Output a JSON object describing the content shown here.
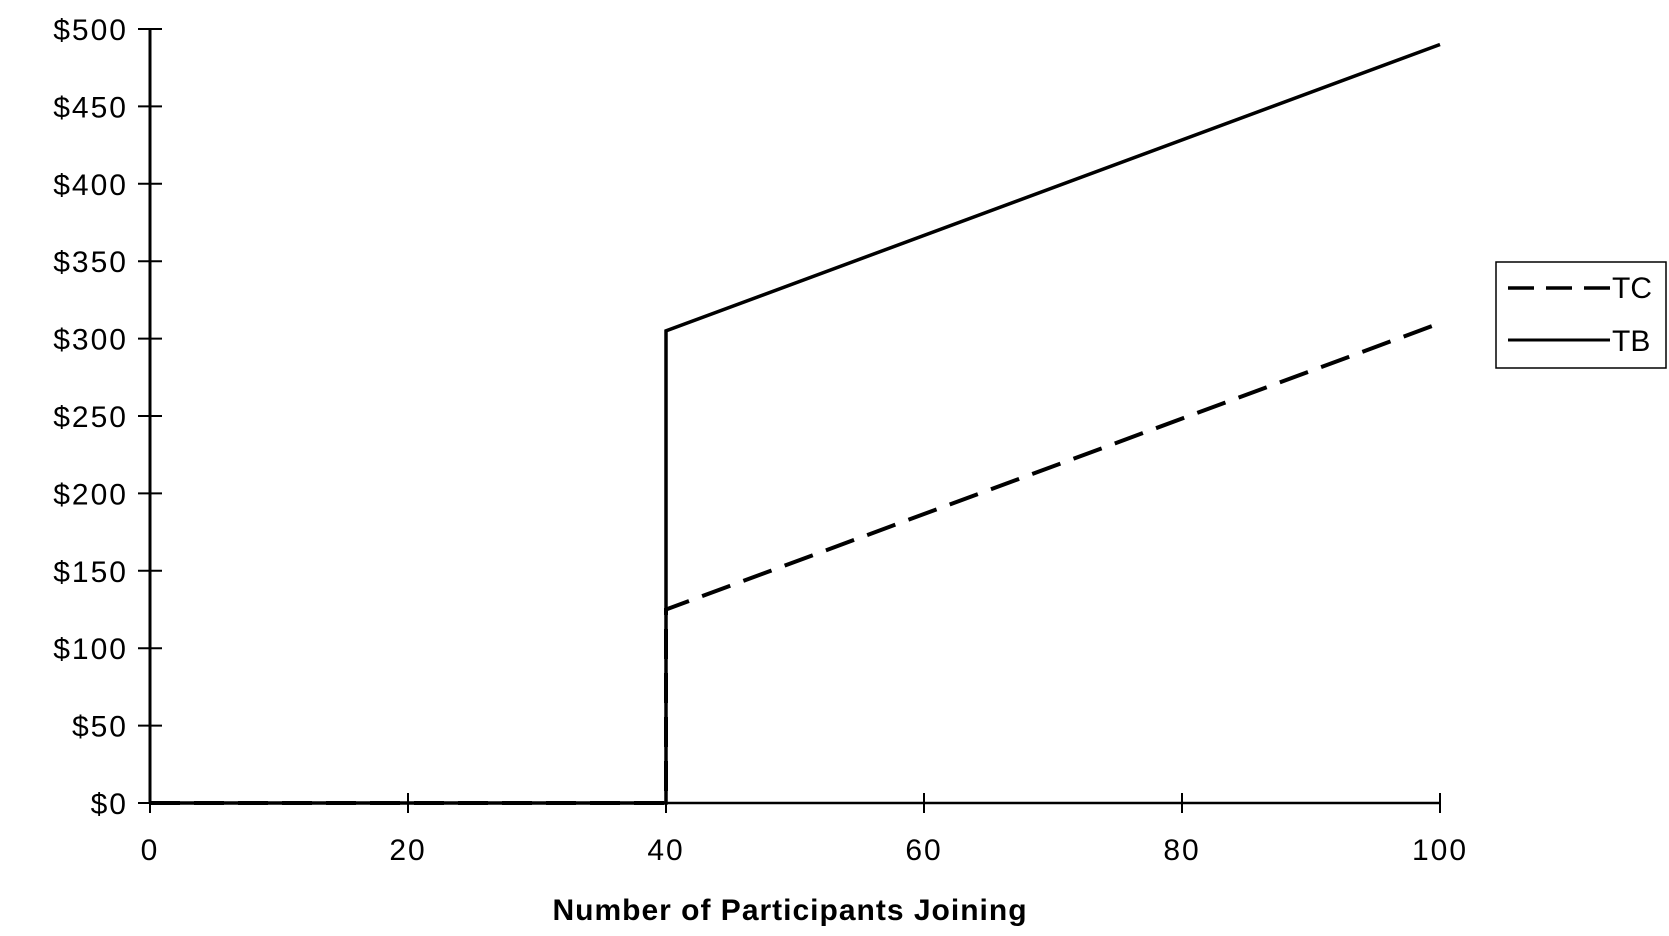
{
  "chart_data": {
    "type": "line",
    "title": "",
    "xlabel": "Number of Participants Joining",
    "ylabel": "",
    "xlim": [
      0,
      100
    ],
    "ylim": [
      0,
      500
    ],
    "x_ticks": [
      0,
      20,
      40,
      60,
      80,
      100
    ],
    "x_tick_labels": [
      "0",
      "20",
      "40",
      "60",
      "80",
      "100"
    ],
    "y_ticks": [
      0,
      50,
      100,
      150,
      200,
      250,
      300,
      350,
      400,
      450,
      500
    ],
    "y_tick_labels": [
      "$0",
      "$50",
      "$100",
      "$150",
      "$200",
      "$250",
      "$300",
      "$350",
      "$400",
      "$450",
      "$500"
    ],
    "grid": false,
    "legend_position": "right",
    "series": [
      {
        "name": "TC",
        "style": "dashed",
        "color": "#000000",
        "points": [
          [
            0,
            0
          ],
          [
            40,
            0
          ],
          [
            40,
            125
          ],
          [
            100,
            310
          ]
        ]
      },
      {
        "name": "TB",
        "style": "solid",
        "color": "#000000",
        "points": [
          [
            0,
            0
          ],
          [
            40,
            0
          ],
          [
            40,
            305
          ],
          [
            100,
            490
          ]
        ]
      }
    ]
  }
}
